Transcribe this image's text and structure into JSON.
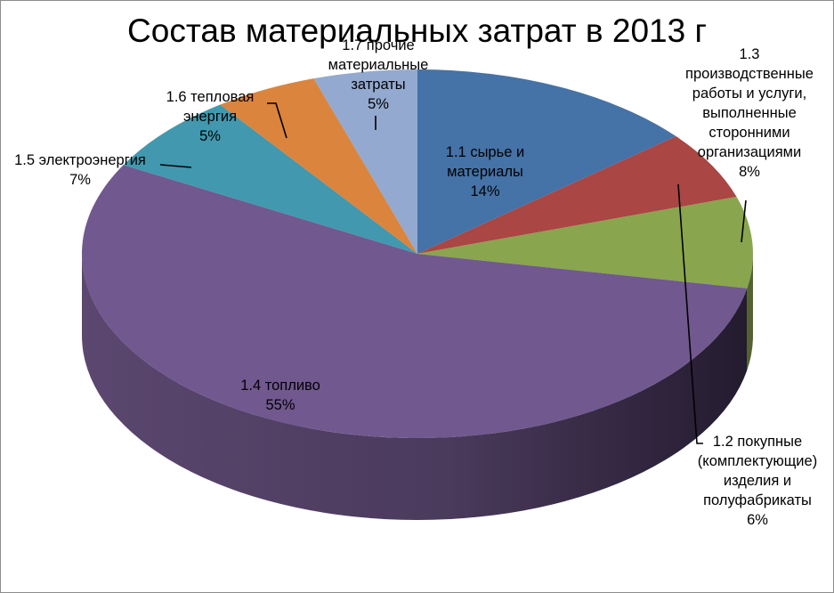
{
  "chart_data": {
    "type": "pie",
    "title": "Состав материальных затрат в 2013 г",
    "categories": [
      "1.1 сырье и материалы",
      "1.2 покупные (комплектующие) изделия и полуфабрикаты",
      "1.3 производственные работы и услуги, выполненные сторонними организациями",
      "1.4 топливо",
      "1.5 электроэнергия",
      "1.6 тепловая энергия",
      "1.7 прочие материальные затраты"
    ],
    "values": [
      14,
      6,
      8,
      55,
      7,
      5,
      5
    ],
    "colors": [
      "#4572a7",
      "#aa4643",
      "#89a54e",
      "#71588f",
      "#4198af",
      "#db843d",
      "#93a9cf"
    ]
  },
  "labels": {
    "s0": "1.1 сырье и\nматериалы\n14%",
    "s1": "1.2 покупные\n(комплектующие)\nизделия и\nполуфабрикаты\n6%",
    "s2": "1.3\nпроизводственные\nработы и услуги,\nвыполненные\nсторонними\nорганизациями\n8%",
    "s3": "1.4 топливо\n55%",
    "s4": "1.5 электроэнергия\n7%",
    "s5": "1.6 тепловая\nэнергия\n5%",
    "s6": "1.7 прочие\nматериальные\nзатраты\n5%"
  }
}
